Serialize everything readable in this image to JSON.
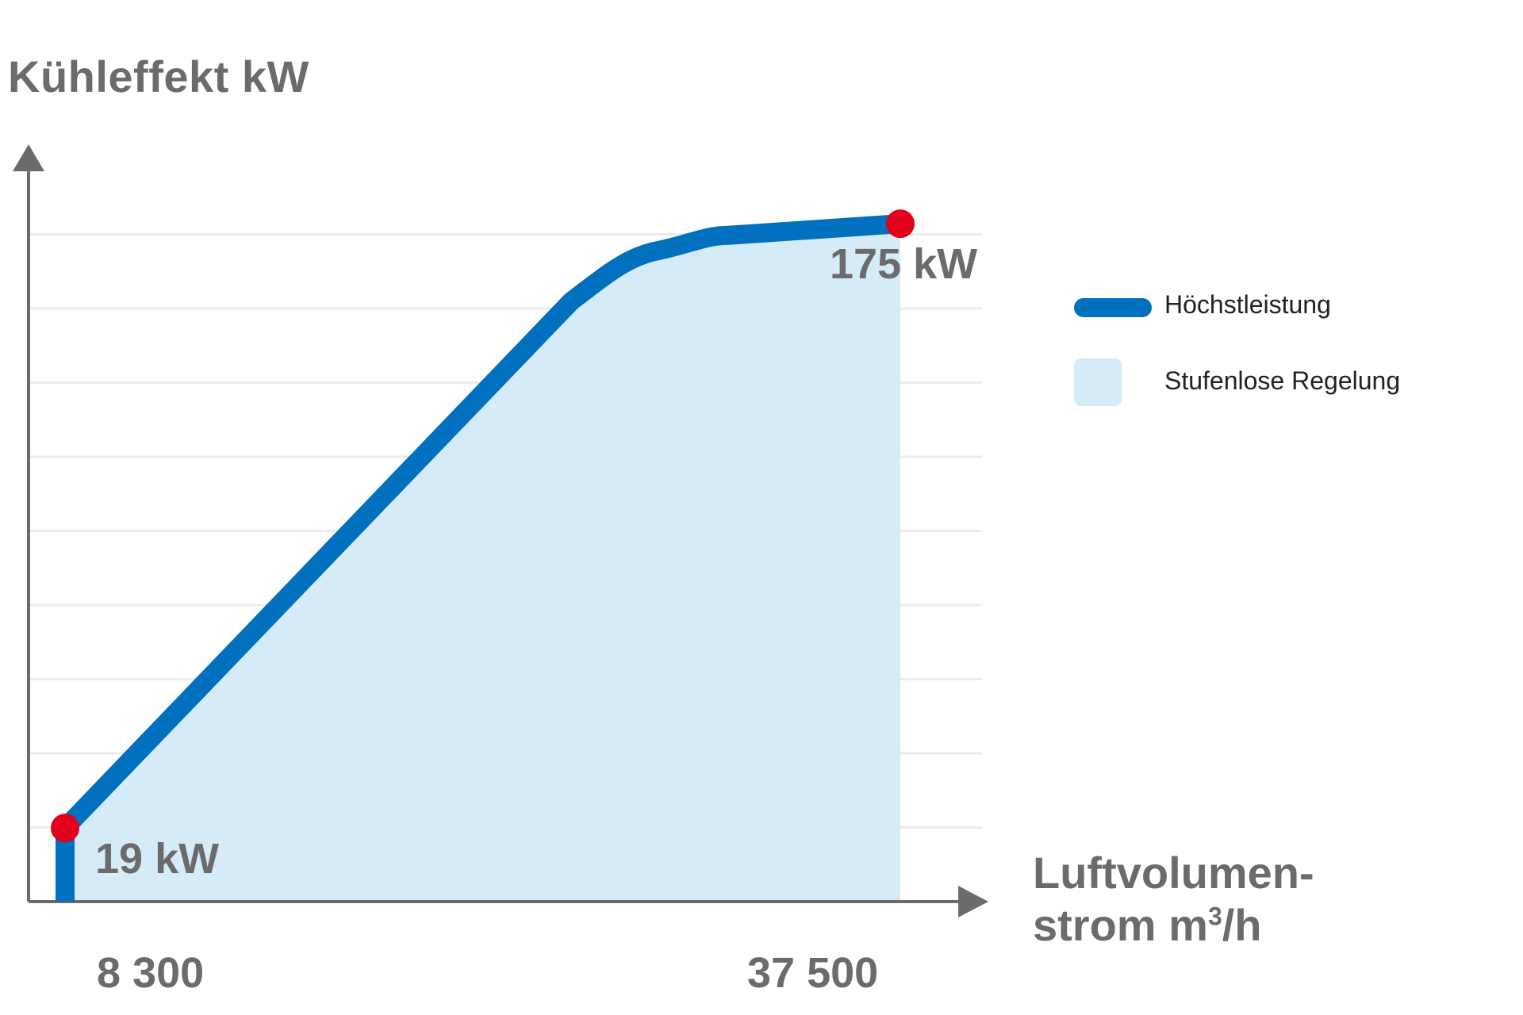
{
  "chart_data": {
    "type": "area",
    "ylabel": "Kühleffekt kW",
    "xlabel_line1": "Luftvolumen-",
    "xlabel_line2_prefix": "strom m",
    "xlabel_line2_sup": "3",
    "xlabel_line2_suffix": "/h",
    "x_ticks": [
      "8 300",
      "37 500"
    ],
    "xlim": [
      7000,
      40500
    ],
    "ylim": [
      0,
      200
    ],
    "grid": true,
    "series": [
      {
        "name": "Höchstleistung",
        "x": [
          8300,
          8300,
          26000,
          29000,
          31500,
          37500
        ],
        "y": [
          0,
          19,
          155,
          168,
          172,
          175
        ]
      }
    ],
    "points": [
      {
        "x": 8300,
        "y": 19,
        "label": "19 kW"
      },
      {
        "x": 37500,
        "y": 175,
        "label": "175 kW"
      }
    ],
    "area": {
      "name": "Stufenlose Regelung"
    },
    "legend": {
      "position": "right",
      "items": [
        {
          "label": "Höchstleistung",
          "swatch": "line"
        },
        {
          "label": "Stufenlose Regelung",
          "swatch": "area"
        }
      ]
    },
    "colors": {
      "line": "#0070bf",
      "area": "#d5ebf8",
      "points": "#e2001a",
      "axis": "#6b6b6b",
      "grid": "#ececec"
    }
  }
}
